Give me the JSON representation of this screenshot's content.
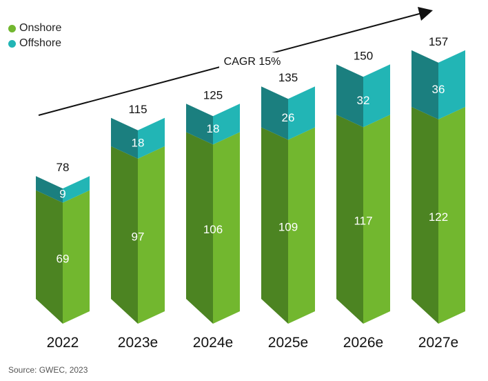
{
  "colors": {
    "onshore_front": "#72b72f",
    "onshore_side": "#4c8422",
    "offshore_front": "#22b5b5",
    "offshore_side": "#1b7f7f",
    "arrow": "#111111"
  },
  "legend": {
    "onshore": "Onshore",
    "offshore": "Offshore"
  },
  "cagr_label": "CAGR 15%",
  "source": "Source: GWEC, 2023",
  "chart_data": {
    "type": "bar",
    "stacked": true,
    "categories": [
      "2022",
      "2023e",
      "2024e",
      "2025e",
      "2026e",
      "2027e"
    ],
    "series": [
      {
        "name": "Onshore",
        "values": [
          69,
          97,
          106,
          109,
          117,
          122
        ]
      },
      {
        "name": "Offshore",
        "values": [
          9,
          18,
          18,
          26,
          32,
          36
        ]
      }
    ],
    "totals": [
      78,
      115,
      125,
      135,
      150,
      157
    ],
    "legend_position": "top-left",
    "grid": false
  }
}
